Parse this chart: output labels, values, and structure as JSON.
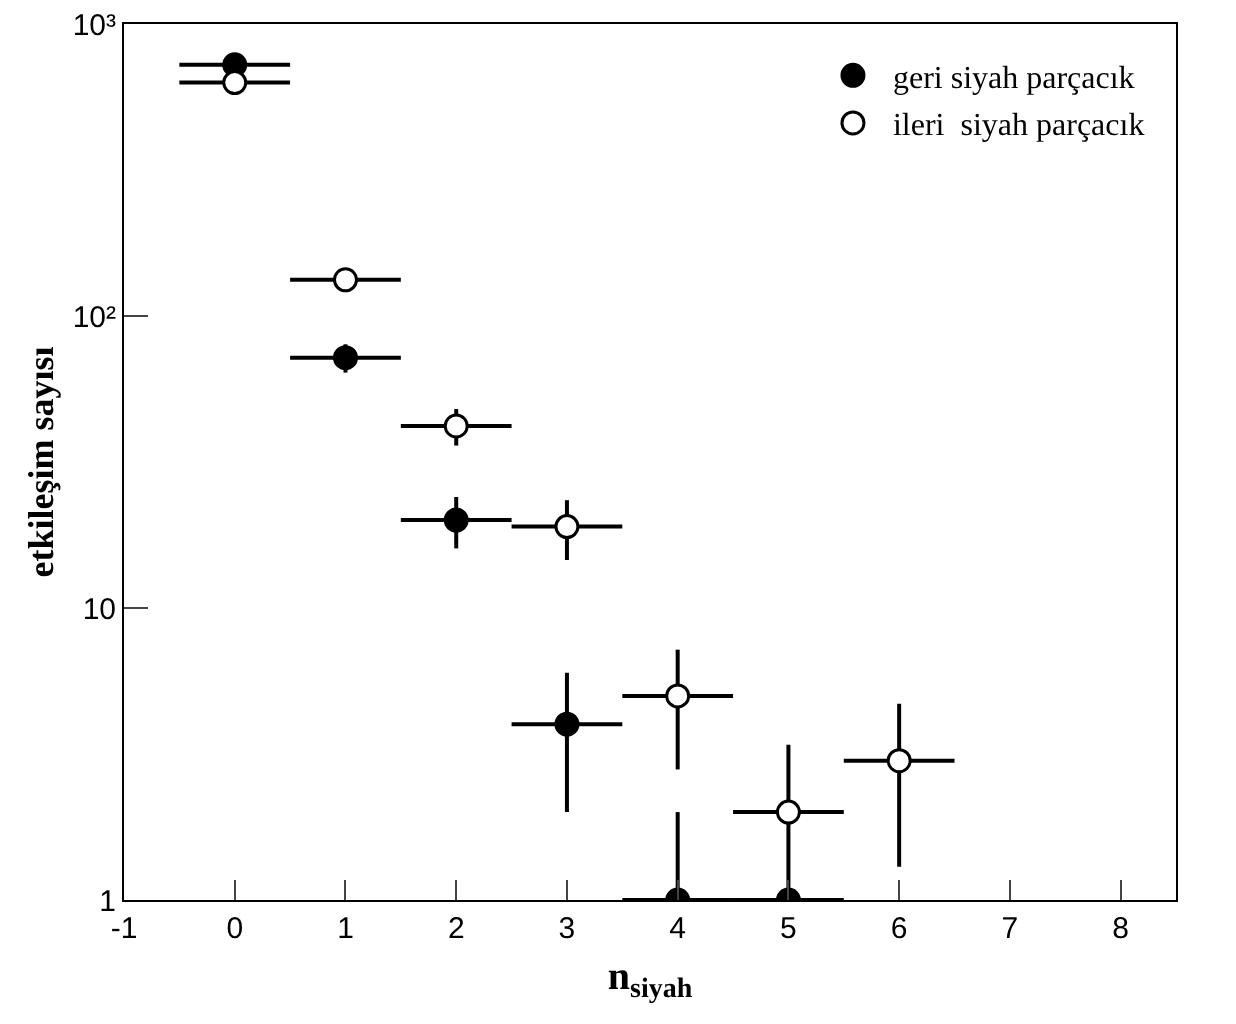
{
  "chart_data": {
    "type": "scatter",
    "xlabel": "n$_{siyah}$",
    "ylabel": "etkileşim sayısı",
    "log": "y",
    "xlim": [
      -1,
      8.5
    ],
    "xticks": [
      -1,
      0,
      1,
      2,
      3,
      4,
      5,
      6,
      7,
      8
    ],
    "ylim": [
      1,
      1000
    ],
    "yticks": [
      1,
      10,
      {
        "value": 100,
        "label": "10²"
      },
      {
        "value": 1000,
        "label": "10³"
      }
    ],
    "grid": false,
    "legend": "top right",
    "marker": "circle",
    "series": [
      {
        "name": "geri siyah parçacık",
        "color": "#000000",
        "x": [
          0,
          1,
          2,
          3,
          4,
          5
        ],
        "values": [
          725,
          72,
          20,
          4,
          1,
          1
        ],
        "errors": [
          null,
          8,
          4,
          2,
          [
            1,
            2
          ],
          null
        ],
        "xerrors": [
          0.5,
          0.5,
          0.5,
          0.5,
          0.5,
          0.5
        ]
      },
      {
        "name": "ileri  siyah parçacık",
        "color": "#ffffff",
        "x": [
          0,
          1,
          2,
          3,
          4,
          5,
          6
        ],
        "values": [
          630,
          133,
          42,
          19,
          5,
          2,
          3
        ],
        "errors": [
          null,
          null,
          6,
          4.4,
          2.2,
          1.4,
          1.7
        ],
        "xerrors": [
          0.5,
          0.5,
          0.5,
          0.5,
          0.5,
          0.5,
          0.5
        ]
      }
    ]
  }
}
